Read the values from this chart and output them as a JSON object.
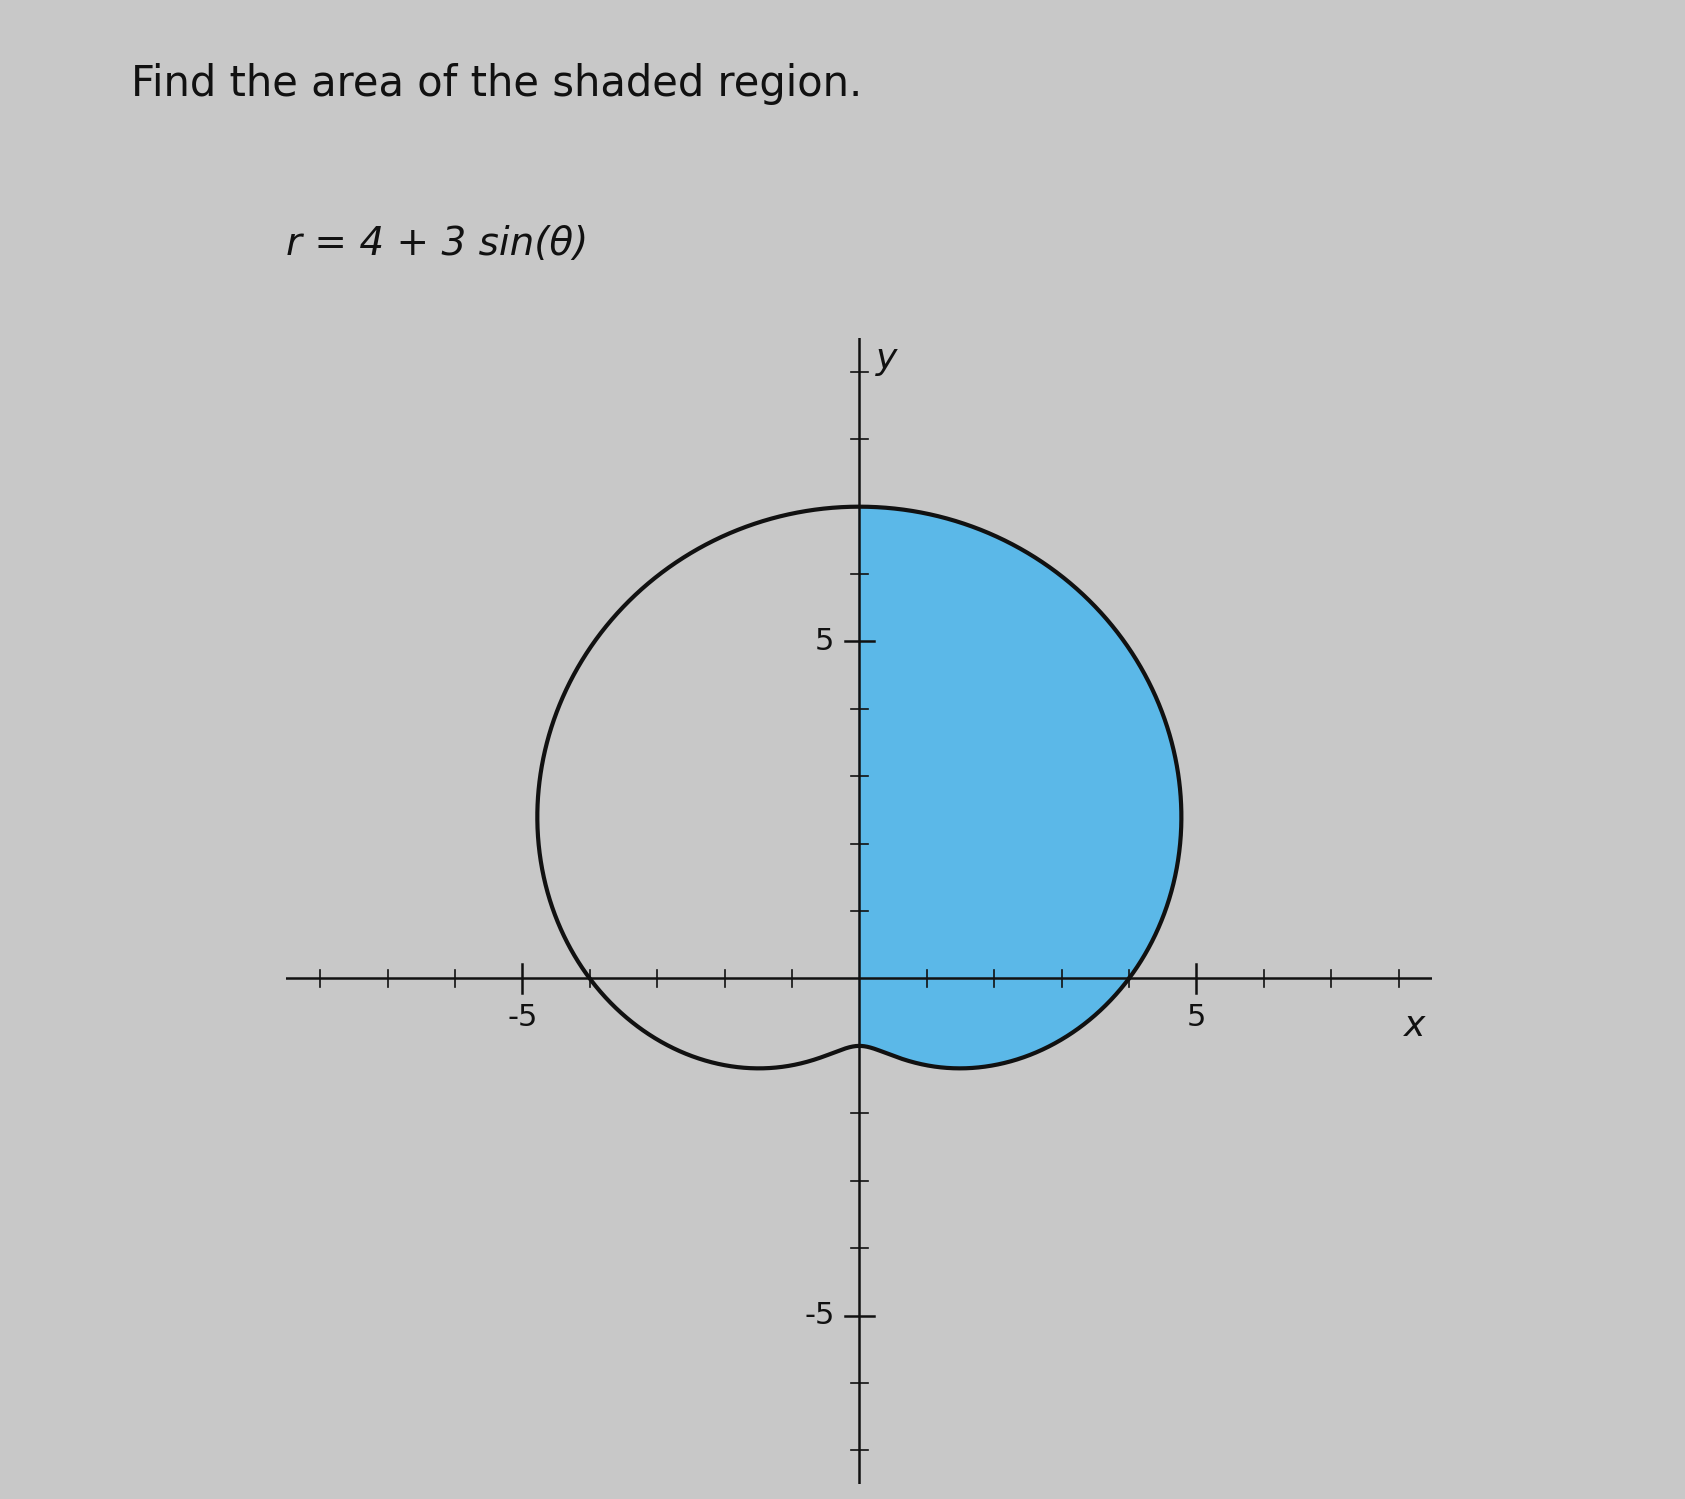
{
  "title": "Find the area of the shaded region.",
  "equation": "r = 4 + 3 sin(θ)",
  "background_color": "#c8c8c8",
  "plot_bg_color": "#c8c8c8",
  "curve_color": "#111111",
  "shade_color": "#5bb8e8",
  "axis_color": "#111111",
  "xlim": [
    -8.5,
    8.5
  ],
  "ylim": [
    -7.5,
    9.5
  ],
  "xticks": [
    -5,
    5
  ],
  "yticks": [
    -5,
    5
  ],
  "xlabel": "x",
  "ylabel": "y",
  "title_fontsize": 30,
  "equation_fontsize": 28,
  "tick_fontsize": 22,
  "axis_label_fontsize": 26,
  "line_width": 3.0
}
